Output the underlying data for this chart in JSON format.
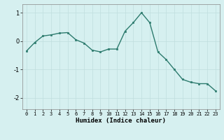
{
  "x": [
    0,
    1,
    2,
    3,
    4,
    5,
    6,
    7,
    8,
    9,
    10,
    11,
    12,
    13,
    14,
    15,
    16,
    17,
    18,
    19,
    20,
    21,
    22,
    23
  ],
  "y": [
    -0.35,
    -0.05,
    0.18,
    0.22,
    0.28,
    0.3,
    0.05,
    -0.07,
    -0.32,
    -0.38,
    -0.28,
    -0.28,
    0.35,
    0.65,
    1.0,
    0.65,
    -0.38,
    -0.65,
    -1.0,
    -1.35,
    -1.45,
    -1.5,
    -1.5,
    -1.75
  ],
  "xlabel": "Humidex (Indice chaleur)",
  "ylim": [
    -2.4,
    1.3
  ],
  "xlim": [
    -0.5,
    23.5
  ],
  "yticks": [
    -2,
    -1,
    0,
    1
  ],
  "xticks": [
    0,
    1,
    2,
    3,
    4,
    5,
    6,
    7,
    8,
    9,
    10,
    11,
    12,
    13,
    14,
    15,
    16,
    17,
    18,
    19,
    20,
    21,
    22,
    23
  ],
  "line_color": "#2d7b6e",
  "marker_color": "#2d7b6e",
  "bg_color": "#d6f0f0",
  "grid_color": "#c0dede"
}
